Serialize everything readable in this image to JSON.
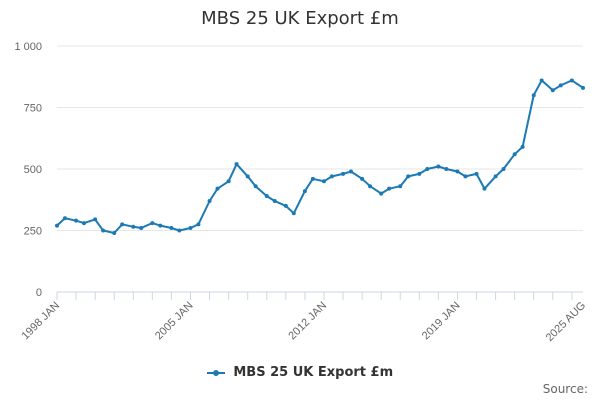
{
  "chart_data": {
    "type": "line",
    "title": "MBS 25 UK Export £m",
    "xlabel": "",
    "ylabel": "",
    "x_range": [
      "1998 JAN",
      "2025 AUG"
    ],
    "ylim": [
      0,
      1000
    ],
    "y_ticks": [
      0,
      250,
      500,
      750,
      1000
    ],
    "y_tick_labels": [
      "0",
      "250",
      "500",
      "750",
      "1 000"
    ],
    "x_ticks": [
      {
        "x": "1998-01",
        "label": "1998 JAN"
      },
      {
        "x": "2005-01",
        "label": "2005 JAN"
      },
      {
        "x": "2012-01",
        "label": "2012 JAN"
      },
      {
        "x": "2019-01",
        "label": "2019 JAN"
      },
      {
        "x": "2025-08",
        "label": "2025 AUG"
      }
    ],
    "grid": true,
    "legend_position": "bottom",
    "series": [
      {
        "name": "MBS 25 UK Export £m",
        "color": "#1b7ab3",
        "x": [
          "1998-01",
          "1998-06",
          "1999-01",
          "1999-06",
          "2000-01",
          "2000-06",
          "2001-01",
          "2001-06",
          "2002-01",
          "2002-06",
          "2003-01",
          "2003-06",
          "2004-01",
          "2004-06",
          "2005-01",
          "2005-06",
          "2006-01",
          "2006-06",
          "2007-01",
          "2007-06",
          "2008-01",
          "2008-06",
          "2009-01",
          "2009-06",
          "2010-01",
          "2010-06",
          "2011-01",
          "2011-06",
          "2012-01",
          "2012-06",
          "2013-01",
          "2013-06",
          "2014-01",
          "2014-06",
          "2015-01",
          "2015-06",
          "2016-01",
          "2016-06",
          "2017-01",
          "2017-06",
          "2018-01",
          "2018-06",
          "2019-01",
          "2019-06",
          "2020-01",
          "2020-06",
          "2021-01",
          "2021-06",
          "2022-01",
          "2022-06",
          "2023-01",
          "2023-06",
          "2024-01",
          "2024-06",
          "2025-01",
          "2025-08"
        ],
        "values": [
          270,
          300,
          290,
          280,
          295,
          250,
          240,
          275,
          265,
          260,
          280,
          270,
          260,
          250,
          260,
          275,
          370,
          420,
          450,
          520,
          470,
          430,
          390,
          370,
          350,
          320,
          410,
          460,
          450,
          470,
          480,
          490,
          460,
          430,
          400,
          420,
          430,
          470,
          480,
          500,
          510,
          500,
          490,
          470,
          480,
          420,
          470,
          500,
          560,
          590,
          800,
          860,
          820,
          840,
          860,
          830
        ]
      }
    ]
  },
  "source_label": "Source:"
}
